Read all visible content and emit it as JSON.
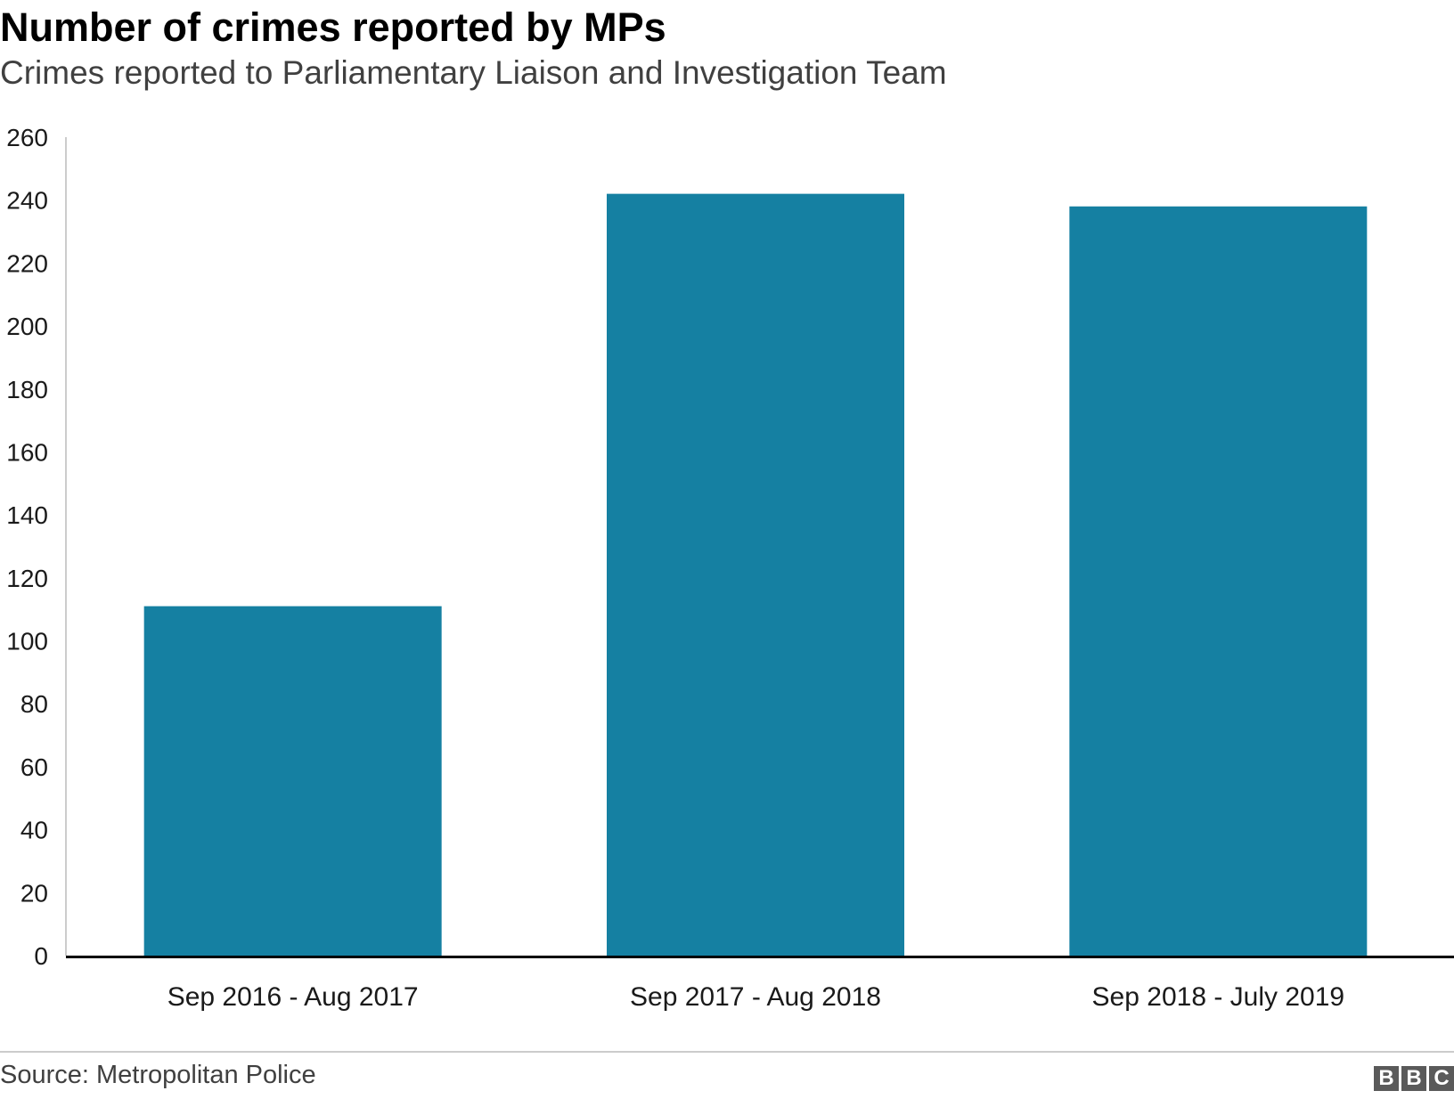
{
  "header": {
    "title": "Number of crimes reported by MPs",
    "subtitle": "Crimes reported to Parliamentary Liaison and Investigation Team"
  },
  "footer": {
    "source": "Source: Metropolitan Police",
    "logo_letters": [
      "B",
      "B",
      "C"
    ]
  },
  "colors": {
    "bar": "#1580a2",
    "axis": "#000000",
    "y_axis_line": "#cccccc"
  },
  "chart_data": {
    "type": "bar",
    "title": "Number of crimes reported by MPs",
    "subtitle": "Crimes reported to Parliamentary Liaison and Investigation Team",
    "xlabel": "",
    "ylabel": "",
    "categories": [
      "Sep 2016 - Aug 2017",
      "Sep 2017 - Aug 2018",
      "Sep 2018 - July 2019"
    ],
    "values": [
      111,
      242,
      238
    ],
    "ylim": [
      0,
      260
    ],
    "yticks": [
      0,
      20,
      40,
      60,
      80,
      100,
      120,
      140,
      160,
      180,
      200,
      220,
      240,
      260
    ],
    "grid": false,
    "legend": "none"
  }
}
